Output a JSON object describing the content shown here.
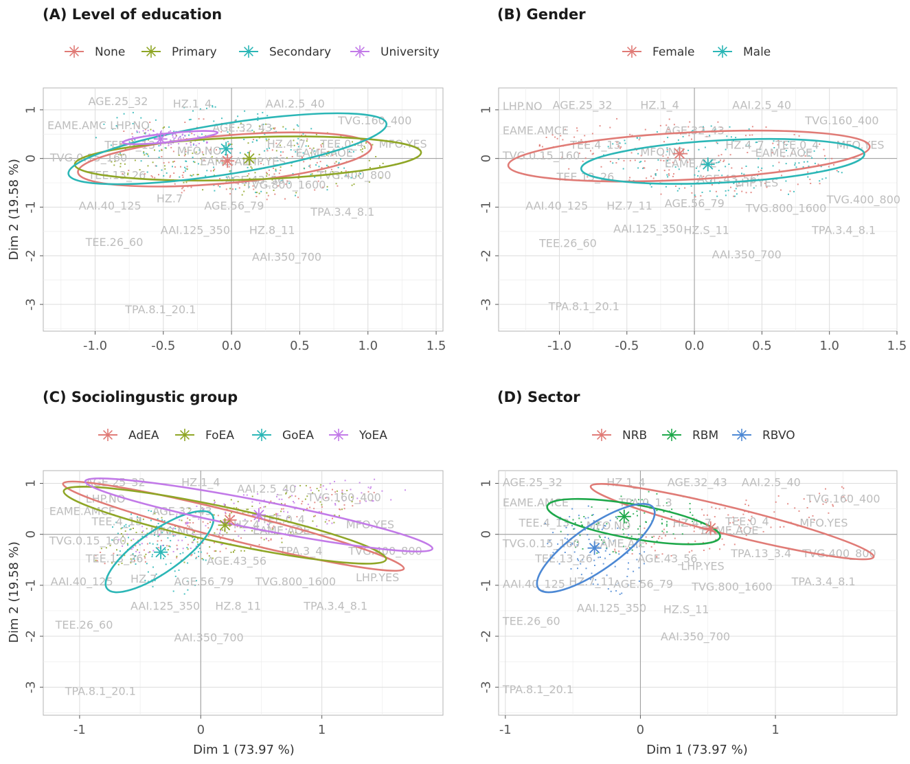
{
  "figure": {
    "xlabel": "Dim 1 (73.97 %)",
    "ylabel": "Dim 2 (19.58 %)"
  },
  "chart_data": [
    {
      "type": "scatter",
      "title": "(A) Level of education",
      "xlabel": "",
      "ylabel": "Dim 2 (19.58 %)",
      "xlim": [
        -1.38,
        1.55
      ],
      "ylim": [
        -3.55,
        1.45
      ],
      "xticks": [
        -1.0,
        -0.5,
        0.0,
        0.5,
        1.0,
        1.5
      ],
      "xtick_labels": [
        "-1.0",
        "-0.5",
        "0.0",
        "0.5",
        "1.0",
        "1.5"
      ],
      "yticks": [
        1,
        0,
        -1,
        -2,
        -3
      ],
      "ytick_labels": [
        "1",
        "0",
        "-1",
        "-2",
        "-3"
      ],
      "legend": [
        {
          "name": "None",
          "color": "#e07b76"
        },
        {
          "name": "Primary",
          "color": "#8fa626"
        },
        {
          "name": "Secondary",
          "color": "#2bb6b6"
        },
        {
          "name": "University",
          "color": "#c27ae8"
        }
      ],
      "centroids": [
        {
          "name": "None",
          "x": -0.03,
          "y": -0.05
        },
        {
          "name": "Primary",
          "x": 0.13,
          "y": 0.0
        },
        {
          "name": "Secondary",
          "x": -0.04,
          "y": 0.2
        },
        {
          "name": "University",
          "x": -0.52,
          "y": 0.4
        }
      ],
      "ellipses": [
        {
          "name": "None",
          "cx": -0.05,
          "cy": -0.02,
          "rx": 1.08,
          "ry": 0.98,
          "rotate": -5
        },
        {
          "name": "Primary",
          "cx": 0.12,
          "cy": 0.0,
          "rx": 1.27,
          "ry": 0.87,
          "rotate": -2
        },
        {
          "name": "Secondary",
          "cx": -0.03,
          "cy": 0.2,
          "rx": 1.18,
          "ry": 1.04,
          "rotate": -9
        },
        {
          "name": "University",
          "cx": -0.45,
          "cy": 0.43,
          "rx": 0.35,
          "ry": 0.18,
          "rotate": -6
        }
      ],
      "labels": [
        {
          "text": "AGE.25_32",
          "x": -1.05,
          "y": 1.1
        },
        {
          "text": "HZ.1_4",
          "x": -0.43,
          "y": 1.05
        },
        {
          "text": "AAI.2.5_40",
          "x": 0.25,
          "y": 1.05
        },
        {
          "text": "TVG.160_400",
          "x": 0.78,
          "y": 0.7
        },
        {
          "text": "EAME.AMC LHP.NO",
          "x": -1.35,
          "y": 0.6
        },
        {
          "text": "AGE.32_43",
          "x": -0.14,
          "y": 0.55
        },
        {
          "text": "TEE.4_13",
          "x": -0.93,
          "y": 0.2
        },
        {
          "text": "MFO.NO",
          "x": -0.4,
          "y": 0.08
        },
        {
          "text": "HZ.4_7",
          "x": 0.26,
          "y": 0.22
        },
        {
          "text": "TEE.0_4",
          "x": 0.65,
          "y": 0.22
        },
        {
          "text": "MFO.YES",
          "x": 1.08,
          "y": 0.22
        },
        {
          "text": "EAME.AOE",
          "x": 0.47,
          "y": 0.04
        },
        {
          "text": "TVG.0.15_160",
          "x": -1.33,
          "y": -0.06
        },
        {
          "text": "EAME.AIE",
          "x": -0.23,
          "y": -0.14
        },
        {
          "text": "LHP.YES",
          "x": 0.08,
          "y": -0.14
        },
        {
          "text": "TVG.400_800",
          "x": 0.63,
          "y": -0.42
        },
        {
          "text": "AGE.43_56",
          "x": -0.05,
          "y": -0.52
        },
        {
          "text": "TVG.800_1600",
          "x": 0.1,
          "y": -0.62
        },
        {
          "text": "TEE.13_26",
          "x": -1.05,
          "y": -0.42
        },
        {
          "text": "AAI.40_125",
          "x": -1.12,
          "y": -1.05
        },
        {
          "text": "HZ.7",
          "x": -0.55,
          "y": -0.9
        },
        {
          "text": "AGE.56_79",
          "x": -0.2,
          "y": -1.05
        },
        {
          "text": "TPA.3.4_8.1",
          "x": 0.58,
          "y": -1.18
        },
        {
          "text": "AAI.125_350",
          "x": -0.52,
          "y": -1.55
        },
        {
          "text": "HZ.8_11",
          "x": 0.13,
          "y": -1.55
        },
        {
          "text": "TEE.26_60",
          "x": -1.07,
          "y": -1.8
        },
        {
          "text": "AAI.350_700",
          "x": 0.15,
          "y": -2.1
        },
        {
          "text": "TPA.8.1_20.1",
          "x": -0.78,
          "y": -3.18
        }
      ]
    },
    {
      "type": "scatter",
      "title": "(B) Gender",
      "xlabel": "",
      "ylabel": "",
      "xlim": [
        -1.45,
        1.5
      ],
      "ylim": [
        -3.55,
        1.45
      ],
      "xticks": [
        -1.0,
        -0.5,
        0.0,
        0.5,
        1.0,
        1.5
      ],
      "xtick_labels": [
        "-1.0",
        "-0.5",
        "0.0",
        "0.5",
        "1.0",
        "1.5"
      ],
      "yticks": [
        1,
        0,
        -1,
        -2,
        -3
      ],
      "ytick_labels": [
        "1",
        "0",
        "-1",
        "-2",
        "-3"
      ],
      "legend": [
        {
          "name": "Female",
          "color": "#e07b76"
        },
        {
          "name": "Male",
          "color": "#2bb6b6"
        }
      ],
      "centroids": [
        {
          "name": "Female",
          "x": -0.11,
          "y": 0.1
        },
        {
          "name": "Male",
          "x": 0.1,
          "y": -0.12
        }
      ],
      "ellipses": [
        {
          "name": "Female",
          "cx": -0.04,
          "cy": 0.05,
          "rx": 1.34,
          "ry": 0.97,
          "rotate": -3
        },
        {
          "name": "Male",
          "cx": 0.21,
          "cy": -0.06,
          "rx": 1.05,
          "ry": 0.87,
          "rotate": -3
        }
      ],
      "labels": [
        {
          "text": "LHP.NO",
          "x": -1.42,
          "y": 1.0
        },
        {
          "text": "AGE.25_32",
          "x": -1.05,
          "y": 1.02
        },
        {
          "text": "HZ.1_4",
          "x": -0.4,
          "y": 1.02
        },
        {
          "text": "AAI.2.5_40",
          "x": 0.28,
          "y": 1.02
        },
        {
          "text": "TVG.160_400",
          "x": 0.82,
          "y": 0.7
        },
        {
          "text": "EAME.AMCE",
          "x": -1.42,
          "y": 0.5
        },
        {
          "text": "AGE.32_43",
          "x": -0.22,
          "y": 0.5
        },
        {
          "text": "TEE.4_13",
          "x": -0.92,
          "y": 0.2
        },
        {
          "text": "MFO.NO",
          "x": -0.4,
          "y": 0.06
        },
        {
          "text": "HZ.4_7",
          "x": 0.23,
          "y": 0.2
        },
        {
          "text": "TEE.0_4",
          "x": 0.6,
          "y": 0.2
        },
        {
          "text": "MFO.YES",
          "x": 1.05,
          "y": 0.2
        },
        {
          "text": "EAME.AOE",
          "x": 0.45,
          "y": 0.04
        },
        {
          "text": "TVG.0.15_160",
          "x": -1.42,
          "y": -0.02
        },
        {
          "text": "EAME.AIE",
          "x": -0.22,
          "y": -0.18
        },
        {
          "text": "TEE.13_26",
          "x": -1.02,
          "y": -0.46
        },
        {
          "text": "AGE.43_56",
          "x": 0.02,
          "y": -0.5
        },
        {
          "text": "LHP.YES",
          "x": 0.3,
          "y": -0.58
        },
        {
          "text": "TVG.400_800",
          "x": 0.98,
          "y": -0.92
        },
        {
          "text": "AAI.40_125",
          "x": -1.25,
          "y": -1.05
        },
        {
          "text": "HZ.7_11",
          "x": -0.65,
          "y": -1.05
        },
        {
          "text": "AGE.56_79",
          "x": -0.22,
          "y": -1.0
        },
        {
          "text": "TVG.800_1600",
          "x": 0.38,
          "y": -1.1
        },
        {
          "text": "TPA.3.4_8.1",
          "x": 0.87,
          "y": -1.55
        },
        {
          "text": "AAI.125_350",
          "x": -0.6,
          "y": -1.52
        },
        {
          "text": "HZ.S_11",
          "x": -0.08,
          "y": -1.55
        },
        {
          "text": "TEE.26_60",
          "x": -1.15,
          "y": -1.82
        },
        {
          "text": "AAI.350_700",
          "x": 0.13,
          "y": -2.05
        },
        {
          "text": "TPA.8.1_20.1",
          "x": -1.08,
          "y": -3.12
        }
      ]
    },
    {
      "type": "scatter",
      "title": "(C) Sociolingustic group",
      "xlabel": "Dim 1 (73.97 %)",
      "ylabel": "Dim 2 (19.58 %)",
      "xlim": [
        -1.3,
        2.0
      ],
      "ylim": [
        -3.55,
        1.25
      ],
      "xticks": [
        -1,
        0,
        1
      ],
      "xtick_labels": [
        "-1",
        "0",
        "1"
      ],
      "yticks": [
        1,
        0,
        -1,
        -2,
        -3
      ],
      "ytick_labels": [
        "1",
        "0",
        "-1",
        "-2",
        "-3"
      ],
      "legend": [
        {
          "name": "AdEA",
          "color": "#e07b76"
        },
        {
          "name": "FoEA",
          "color": "#8fa626"
        },
        {
          "name": "GoEA",
          "color": "#2bb6b6"
        },
        {
          "name": "YoEA",
          "color": "#c27ae8"
        }
      ],
      "centroids": [
        {
          "name": "AdEA",
          "x": 0.24,
          "y": 0.28
        },
        {
          "name": "FoEA",
          "x": 0.2,
          "y": 0.18
        },
        {
          "name": "GoEA",
          "x": -0.33,
          "y": -0.35
        },
        {
          "name": "YoEA",
          "x": 0.48,
          "y": 0.38
        }
      ],
      "ellipses": [
        {
          "name": "AdEA",
          "cx": 0.27,
          "cy": 0.16,
          "rx": 1.45,
          "ry": 0.55,
          "rotate": 14
        },
        {
          "name": "FoEA",
          "cx": 0.2,
          "cy": 0.18,
          "rx": 1.36,
          "ry": 0.7,
          "rotate": 12
        },
        {
          "name": "GoEA",
          "cx": -0.34,
          "cy": -0.34,
          "rx": 0.53,
          "ry": 0.82,
          "rotate": -35
        },
        {
          "name": "YoEA",
          "cx": 0.48,
          "cy": 0.38,
          "rx": 1.46,
          "ry": 0.56,
          "rotate": 11
        }
      ],
      "labels": [
        {
          "text": "AGE.25_32",
          "x": -0.95,
          "y": 0.95
        },
        {
          "text": "HZ.1_4",
          "x": -0.16,
          "y": 0.95
        },
        {
          "text": "AAI.2.5_40",
          "x": 0.3,
          "y": 0.82
        },
        {
          "text": "TVG.160_400",
          "x": 0.88,
          "y": 0.65
        },
        {
          "text": "LHP.NO",
          "x": -0.95,
          "y": 0.62
        },
        {
          "text": "EAME.AMCE",
          "x": -1.25,
          "y": 0.38
        },
        {
          "text": "AGE.32_43",
          "x": -0.4,
          "y": 0.38
        },
        {
          "text": "TEE.0_4",
          "x": 0.5,
          "y": 0.22
        },
        {
          "text": "TEE.4_13",
          "x": -0.9,
          "y": 0.18
        },
        {
          "text": "HZ.4_7",
          "x": 0.27,
          "y": 0.12
        },
        {
          "text": "MFO.YES",
          "x": 1.2,
          "y": 0.12
        },
        {
          "text": "MFO.NO",
          "x": -0.42,
          "y": -0.02
        },
        {
          "text": "EAME.AOE",
          "x": 0.43,
          "y": 0.0
        },
        {
          "text": "TVG.0.15_160",
          "x": -1.25,
          "y": -0.2
        },
        {
          "text": "TPA.3_4",
          "x": 0.65,
          "y": -0.4
        },
        {
          "text": "TVG.400_800",
          "x": 1.22,
          "y": -0.4
        },
        {
          "text": "TEE.13_26",
          "x": -0.95,
          "y": -0.55
        },
        {
          "text": "AGE.43_56",
          "x": 0.05,
          "y": -0.6
        },
        {
          "text": "LHP.YES",
          "x": 1.28,
          "y": -0.92
        },
        {
          "text": "AAI.40_125",
          "x": -1.24,
          "y": -1.0
        },
        {
          "text": "HZ.7",
          "x": -0.58,
          "y": -0.95
        },
        {
          "text": "AGE.56_79",
          "x": -0.22,
          "y": -1.0
        },
        {
          "text": "TVG.800_1600",
          "x": 0.45,
          "y": -1.0
        },
        {
          "text": "AAI.125_350",
          "x": -0.58,
          "y": -1.48
        },
        {
          "text": "HZ.8_11",
          "x": 0.12,
          "y": -1.48
        },
        {
          "text": "TPA.3.4_8.1",
          "x": 0.85,
          "y": -1.48
        },
        {
          "text": "TEE.26_60",
          "x": -1.2,
          "y": -1.85
        },
        {
          "text": "AAI.350_700",
          "x": -0.22,
          "y": -2.1
        },
        {
          "text": "TPA.8.1_20.1",
          "x": -1.12,
          "y": -3.15
        }
      ]
    },
    {
      "type": "scatter",
      "title": "(D) Sector",
      "xlabel": "Dim 1 (73.97 %)",
      "ylabel": "",
      "xlim": [
        -1.05,
        1.9
      ],
      "ylim": [
        -3.55,
        1.25
      ],
      "xticks": [
        -1,
        0,
        1
      ],
      "xtick_labels": [
        "-1",
        "0",
        "1"
      ],
      "yticks": [
        1,
        0,
        -1,
        -2,
        -3
      ],
      "ytick_labels": [
        "1",
        "0",
        "-1",
        "-2",
        "-3"
      ],
      "legend": [
        {
          "name": "NRB",
          "color": "#e07b76"
        },
        {
          "name": "RBM",
          "color": "#1ea84a"
        },
        {
          "name": "RBVO",
          "color": "#4c88d4"
        }
      ],
      "centroids": [
        {
          "name": "NRB",
          "x": 0.52,
          "y": 0.12
        },
        {
          "name": "RBM",
          "x": -0.12,
          "y": 0.35
        },
        {
          "name": "RBVO",
          "x": -0.34,
          "y": -0.27
        }
      ],
      "ellipses": [
        {
          "name": "NRB",
          "cx": 0.68,
          "cy": 0.25,
          "rx": 1.08,
          "ry": 0.54,
          "rotate": 14
        },
        {
          "name": "RBM",
          "cx": -0.05,
          "cy": 0.25,
          "rx": 0.65,
          "ry": 0.67,
          "rotate": 10
        },
        {
          "name": "RBVO",
          "cx": -0.33,
          "cy": -0.27,
          "rx": 0.52,
          "ry": 0.87,
          "rotate": -35
        }
      ],
      "labels": [
        {
          "text": "AGE.25_32",
          "x": -1.02,
          "y": 0.95
        },
        {
          "text": "HZ.1_4",
          "x": -0.25,
          "y": 0.95
        },
        {
          "text": "AGE.32_43",
          "x": 0.2,
          "y": 0.95
        },
        {
          "text": "AAI.2.5_40",
          "x": 0.75,
          "y": 0.95
        },
        {
          "text": "TVG.160_400",
          "x": 1.23,
          "y": 0.62
        },
        {
          "text": "TPA.0_1.3",
          "x": -0.16,
          "y": 0.55
        },
        {
          "text": "EAME.AMCE",
          "x": -1.02,
          "y": 0.55
        },
        {
          "text": "TEE.4_13",
          "x": -0.9,
          "y": 0.15
        },
        {
          "text": "MFO.NO",
          "x": -0.4,
          "y": 0.1
        },
        {
          "text": "HZ.4_7",
          "x": 0.24,
          "y": 0.15
        },
        {
          "text": "TEE.0_4",
          "x": 0.63,
          "y": 0.18
        },
        {
          "text": "MFO.YES",
          "x": 1.18,
          "y": 0.15
        },
        {
          "text": "EAME.AOE",
          "x": 0.45,
          "y": 0.0
        },
        {
          "text": "TVG.0.15_160",
          "x": -1.02,
          "y": -0.25
        },
        {
          "text": "EAME.AIE",
          "x": -0.35,
          "y": -0.25
        },
        {
          "text": "TPA.13_3.4",
          "x": 0.67,
          "y": -0.45
        },
        {
          "text": "TVG.400_800",
          "x": 1.2,
          "y": -0.45
        },
        {
          "text": "TEE.13_26",
          "x": -0.78,
          "y": -0.55
        },
        {
          "text": "AGE.43_56",
          "x": -0.02,
          "y": -0.55
        },
        {
          "text": "LHP.YES",
          "x": 0.3,
          "y": -0.7
        },
        {
          "text": "TPA.3.4_8.1",
          "x": 1.12,
          "y": -1.0
        },
        {
          "text": "AAI.40_125",
          "x": -1.02,
          "y": -1.05
        },
        {
          "text": "HZ.7_11",
          "x": -0.53,
          "y": -1.0
        },
        {
          "text": "AGE.56_79",
          "x": -0.2,
          "y": -1.05
        },
        {
          "text": "TVG.800_1600",
          "x": 0.38,
          "y": -1.1
        },
        {
          "text": "AAI.125_350",
          "x": -0.47,
          "y": -1.52
        },
        {
          "text": "HZ.S_11",
          "x": 0.17,
          "y": -1.55
        },
        {
          "text": "TEE.26_60",
          "x": -1.02,
          "y": -1.78
        },
        {
          "text": "AAI.350_700",
          "x": 0.15,
          "y": -2.08
        },
        {
          "text": "TPA.8.1_20.1",
          "x": -1.02,
          "y": -3.12
        }
      ]
    }
  ]
}
